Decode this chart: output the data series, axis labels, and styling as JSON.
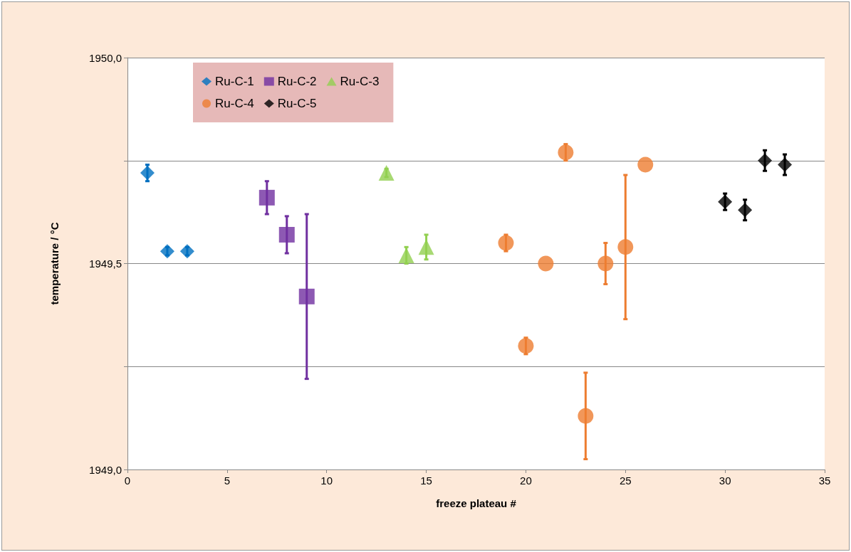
{
  "chart_data": {
    "type": "scatter",
    "xlabel": "freeze plateau #",
    "ylabel": "temperature / °C",
    "xlim": [
      0,
      35
    ],
    "xticks": [
      0,
      5,
      10,
      15,
      20,
      25,
      30,
      35
    ],
    "ylim": [
      1949,
      1950
    ],
    "yticks": [
      {
        "value": 1949,
        "label": "1949,0"
      },
      {
        "value": 1949.25,
        "label": null
      },
      {
        "value": 1949.5,
        "label": "1949,5"
      },
      {
        "value": 1949.75,
        "label": null
      },
      {
        "value": 1950,
        "label": "1950,0"
      }
    ],
    "grid": "y",
    "legend": "top left",
    "series": [
      {
        "name": "Ru-C-1",
        "color": "#0070c0",
        "marker": "diamond",
        "x": [
          1,
          2,
          3
        ],
        "values": [
          1949.72,
          1949.53,
          1949.53
        ],
        "errors": [
          0.02,
          0.01,
          0.01
        ]
      },
      {
        "name": "Ru-C-2",
        "color": "#7030a0",
        "marker": "square",
        "x": [
          7,
          8,
          9
        ],
        "values": [
          1949.66,
          1949.57,
          1949.42
        ],
        "errors": [
          0.04,
          0.045,
          0.2
        ]
      },
      {
        "name": "Ru-C-3",
        "color": "#92d050",
        "marker": "triangle",
        "x": [
          13,
          14,
          15
        ],
        "values": [
          1949.72,
          1949.52,
          1949.54
        ],
        "errors": [
          0.01,
          0.02,
          0.03
        ]
      },
      {
        "name": "Ru-C-4",
        "color": "#ed7d31",
        "marker": "circle",
        "x": [
          19,
          20,
          21,
          22,
          23,
          24,
          25,
          26
        ],
        "values": [
          1949.55,
          1949.3,
          1949.5,
          1949.77,
          1949.13,
          1949.5,
          1949.54,
          1949.74
        ],
        "errors": [
          0.02,
          0.02,
          null,
          0.02,
          0.105,
          0.05,
          0.175,
          null
        ]
      },
      {
        "name": "Ru-C-5",
        "color": "#000000",
        "marker": "diamond",
        "x": [
          30,
          31,
          32,
          33
        ],
        "values": [
          1949.65,
          1949.63,
          1949.75,
          1949.74
        ],
        "errors": [
          0.02,
          0.025,
          0.025,
          0.025
        ]
      }
    ]
  }
}
